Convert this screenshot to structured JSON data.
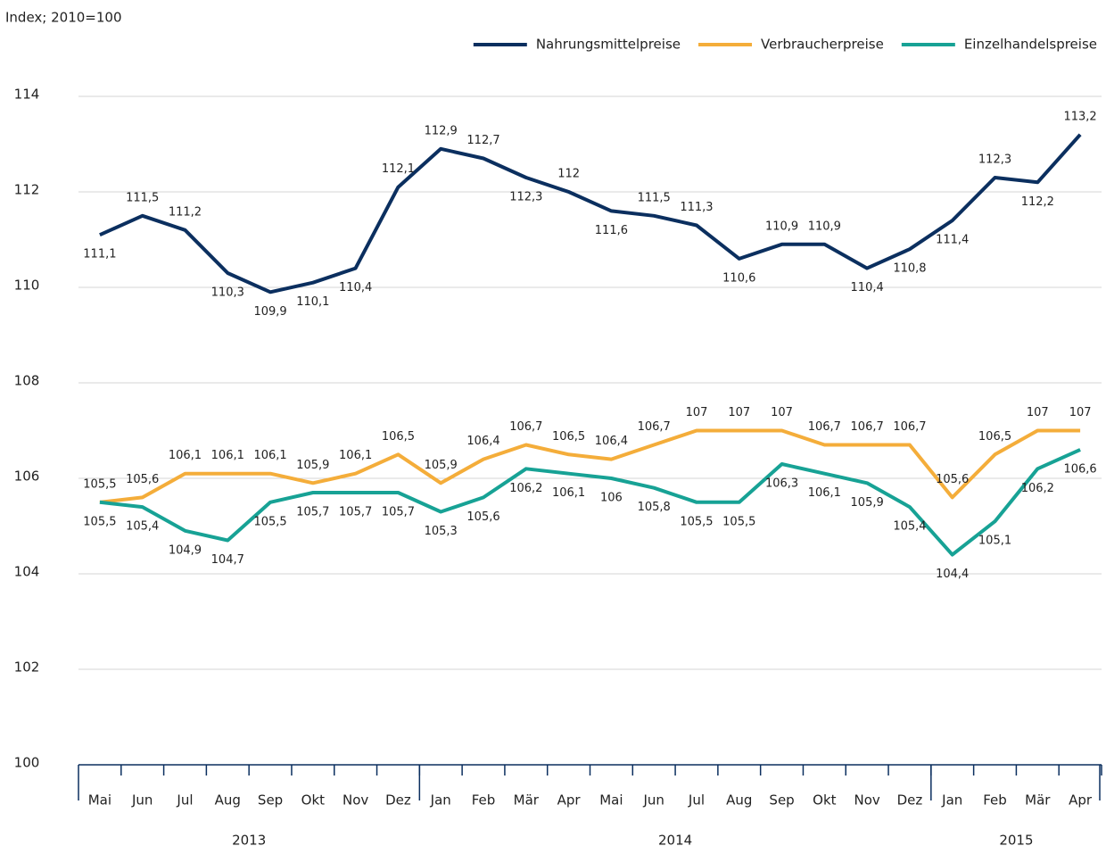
{
  "chart_data": {
    "type": "line",
    "y_axis_label": "Index; 2010=100",
    "groups": [
      {
        "label": "2013",
        "categories": [
          "Mai",
          "Jun",
          "Jul",
          "Aug",
          "Sep",
          "Okt",
          "Nov",
          "Dez"
        ]
      },
      {
        "label": "2014",
        "categories": [
          "Jan",
          "Feb",
          "Mär",
          "Apr",
          "Mai",
          "Jun",
          "Jul",
          "Aug",
          "Sep",
          "Okt",
          "Nov",
          "Dez"
        ]
      },
      {
        "label": "2015",
        "categories": [
          "Jan",
          "Feb",
          "Mär",
          "Apr"
        ]
      }
    ],
    "series": [
      {
        "name": "Nahrungsmittelpreise",
        "color": "#0b2f5f",
        "values": [
          111.1,
          111.5,
          111.2,
          110.3,
          109.9,
          110.1,
          110.4,
          112.1,
          112.9,
          112.7,
          112.3,
          112,
          111.6,
          111.5,
          111.3,
          110.6,
          110.9,
          110.9,
          110.4,
          110.8,
          111.4,
          112.3,
          112.2,
          113.2
        ],
        "value_labels": [
          "111,1",
          "111,5",
          "111,2",
          "110,3",
          "109,9",
          "110,1",
          "110,4",
          "112,1",
          "112,9",
          "112,7",
          "112,3",
          "112",
          "111,6",
          "111,5",
          "111,3",
          "110,6",
          "110,9",
          "110,9",
          "110,4",
          "110,8",
          "111,4",
          "112,3",
          "112,2",
          "113,2"
        ]
      },
      {
        "name": "Verbraucherpreise",
        "color": "#f4ad3a",
        "values": [
          105.5,
          105.6,
          106.1,
          106.1,
          106.1,
          105.9,
          106.1,
          106.5,
          105.9,
          106.4,
          106.7,
          106.5,
          106.4,
          106.7,
          107,
          107,
          107,
          106.7,
          106.7,
          106.7,
          105.6,
          106.5,
          107,
          107
        ],
        "value_labels": [
          "105,5",
          "105,6",
          "106,1",
          "106,1",
          "106,1",
          "105,9",
          "106,1",
          "106,5",
          "105,9",
          "106,4",
          "106,7",
          "106,5",
          "106,4",
          "106,7",
          "107",
          "107",
          "107",
          "106,7",
          "106,7",
          "106,7",
          "105,6",
          "106,5",
          "107",
          "107"
        ]
      },
      {
        "name": "Einzelhandelspreise",
        "color": "#17a295",
        "values": [
          105.5,
          105.4,
          104.9,
          104.7,
          105.5,
          105.7,
          105.7,
          105.7,
          105.3,
          105.6,
          106.2,
          106.1,
          106,
          105.8,
          105.5,
          105.5,
          106.3,
          106.1,
          105.9,
          105.4,
          104.4,
          105.1,
          106.2,
          106.6
        ],
        "value_labels": [
          "105,5",
          "105,4",
          "104,9",
          "104,7",
          "105,5",
          "105,7",
          "105,7",
          "105,7",
          "105,3",
          "105,6",
          "106,2",
          "106,1",
          "106",
          "105,8",
          "105,5",
          "105,5",
          "106,3",
          "106,1",
          "105,9",
          "105,4",
          "104,4",
          "105,1",
          "106,2",
          "106,6"
        ]
      }
    ],
    "ylim": [
      100,
      114
    ],
    "yticks": [
      100,
      102,
      104,
      106,
      108,
      110,
      112,
      114
    ],
    "grid": true,
    "legend": "top-right"
  }
}
